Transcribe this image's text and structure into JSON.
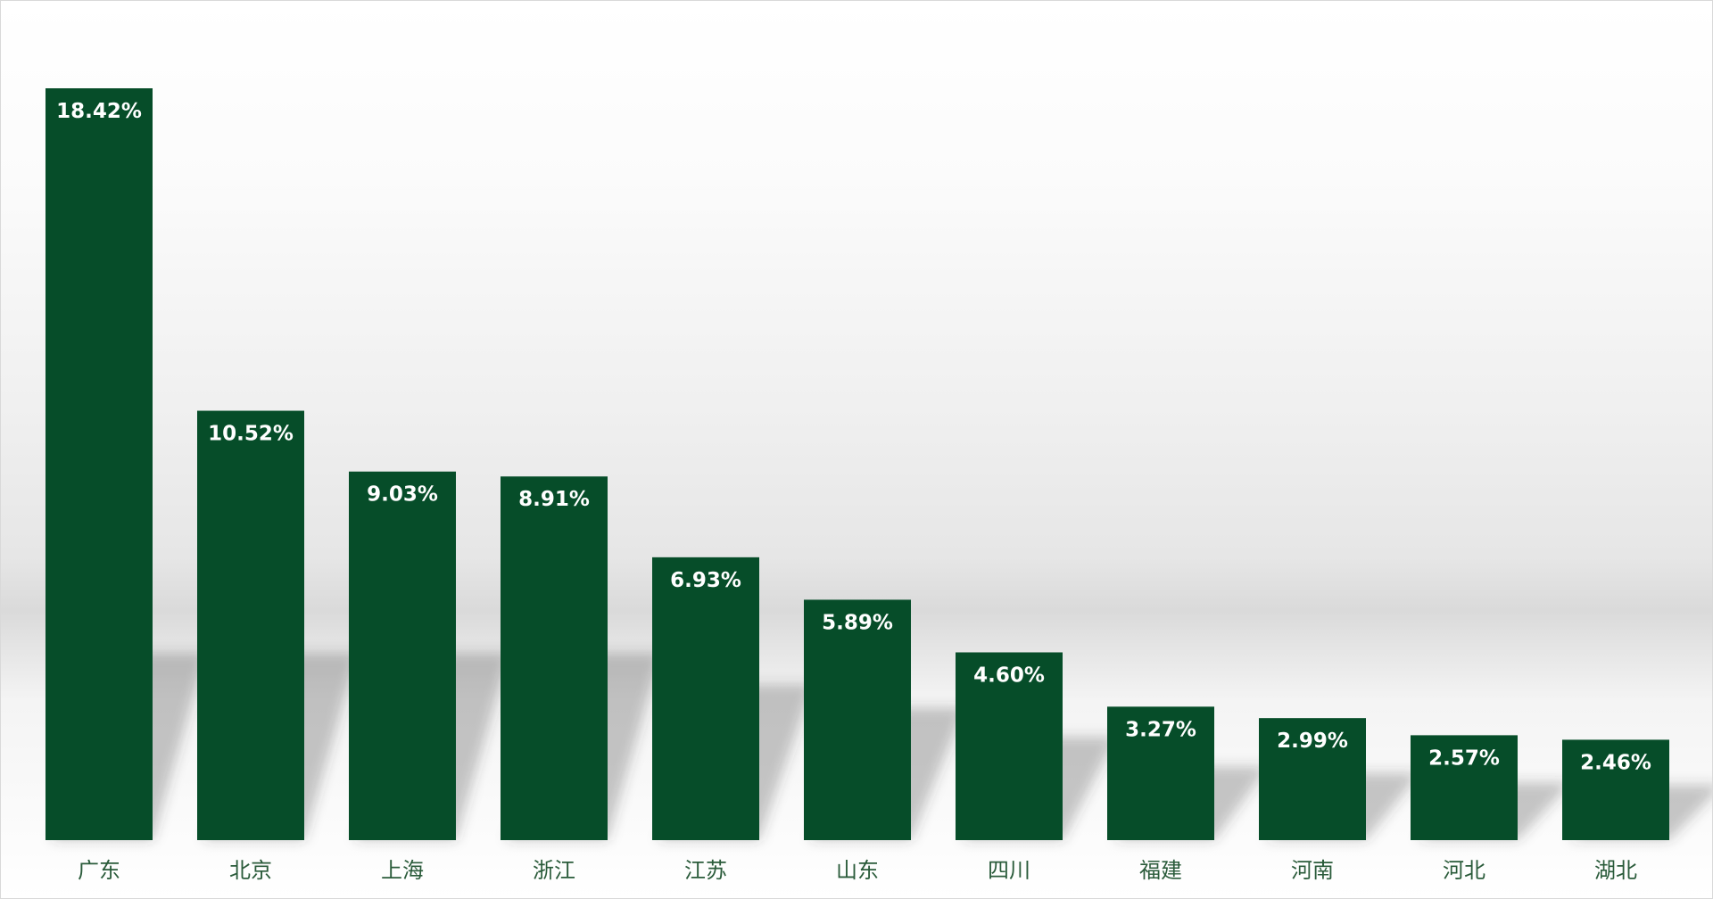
{
  "chart_data": {
    "type": "bar",
    "categories": [
      "广东",
      "北京",
      "上海",
      "浙江",
      "江苏",
      "山东",
      "四川",
      "福建",
      "河南",
      "河北",
      "湖北"
    ],
    "values": [
      18.42,
      10.52,
      9.03,
      8.91,
      6.93,
      5.89,
      4.6,
      3.27,
      2.99,
      2.57,
      2.46
    ],
    "data_labels": [
      "18.42%",
      "10.52%",
      "9.03%",
      "8.91%",
      "6.93%",
      "5.89%",
      "4.60%",
      "3.27%",
      "2.99%",
      "2.57%",
      "2.46%"
    ],
    "title": "",
    "xlabel": "",
    "ylabel": "",
    "ylim": [
      0,
      18.42
    ],
    "grid": false,
    "legend": "none",
    "colors": {
      "bar": "#064d29",
      "data_label": "#ffffff",
      "category_label": "#2a5b3a"
    }
  }
}
